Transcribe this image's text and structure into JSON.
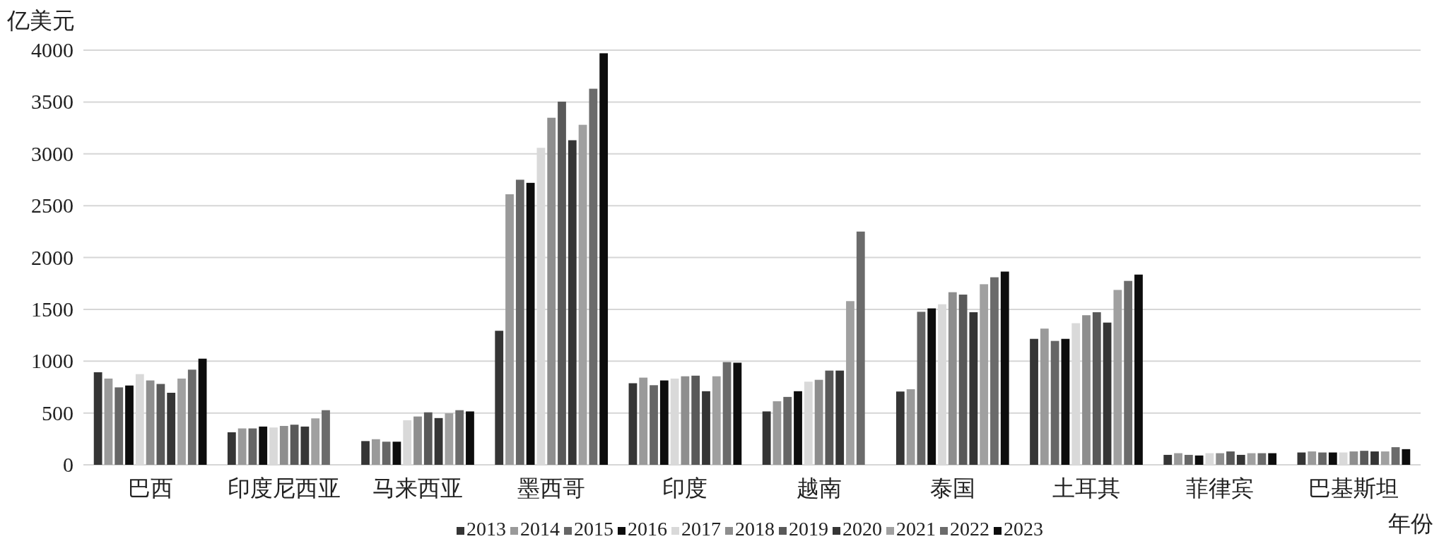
{
  "chart_data": {
    "type": "bar",
    "ylabel": "亿美元",
    "xlabel": "年份",
    "categories": [
      "巴西",
      "印度尼西亚",
      "马来西亚",
      "墨西哥",
      "印度",
      "越南",
      "泰国",
      "土耳其",
      "菲律宾",
      "巴基斯坦"
    ],
    "ylim": [
      0,
      4000
    ],
    "yticks": [
      0,
      500,
      1000,
      1500,
      2000,
      2500,
      3000,
      3500,
      4000
    ],
    "grid": "y",
    "legend": "bottom",
    "series": [
      {
        "name": "2013",
        "color": "#353535",
        "values": [
          893,
          314,
          229,
          1293,
          787,
          515,
          707,
          1215,
          96,
          119
        ]
      },
      {
        "name": "2014",
        "color": "#9a9a9a",
        "values": [
          832,
          351,
          247,
          2610,
          841,
          613,
          729,
          1314,
          112,
          129
        ]
      },
      {
        "name": "2015",
        "color": "#666666",
        "values": [
          747,
          351,
          223,
          2750,
          768,
          655,
          1476,
          1195,
          96,
          119
        ]
      },
      {
        "name": "2016",
        "color": "#0d0d0d",
        "values": [
          765,
          369,
          223,
          2720,
          814,
          710,
          1509,
          1215,
          90,
          119
        ]
      },
      {
        "name": "2017",
        "color": "#d9d9d9",
        "values": [
          875,
          360,
          430,
          3058,
          832,
          802,
          1549,
          1366,
          112,
          119
        ]
      },
      {
        "name": "2018",
        "color": "#8e8e8e",
        "values": [
          814,
          375,
          466,
          3348,
          854,
          820,
          1665,
          1443,
          112,
          129
        ]
      },
      {
        "name": "2019",
        "color": "#595959",
        "values": [
          780,
          387,
          506,
          3503,
          860,
          909,
          1642,
          1472,
          129,
          135
        ]
      },
      {
        "name": "2020",
        "color": "#353535",
        "values": [
          695,
          369,
          451,
          3131,
          710,
          909,
          1472,
          1372,
          96,
          129
        ]
      },
      {
        "name": "2021",
        "color": "#a0a0a0",
        "values": [
          832,
          448,
          497,
          3280,
          854,
          1579,
          1742,
          1687,
          112,
          129
        ]
      },
      {
        "name": "2022",
        "color": "#6b6b6b",
        "values": [
          918,
          527,
          527,
          3628,
          991,
          2250,
          1809,
          1774,
          112,
          170
        ]
      },
      {
        "name": "2023",
        "color": "#0d0d0d",
        "values": [
          1024,
          null,
          515,
          3970,
          985,
          null,
          1864,
          1835,
          112,
          151
        ]
      }
    ]
  }
}
